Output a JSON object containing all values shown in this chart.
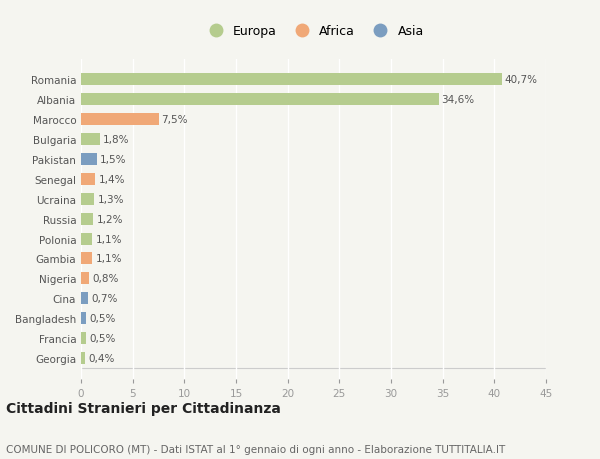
{
  "countries": [
    "Romania",
    "Albania",
    "Marocco",
    "Bulgaria",
    "Pakistan",
    "Senegal",
    "Ucraina",
    "Russia",
    "Polonia",
    "Gambia",
    "Nigeria",
    "Cina",
    "Bangladesh",
    "Francia",
    "Georgia"
  ],
  "values": [
    40.7,
    34.6,
    7.5,
    1.8,
    1.5,
    1.4,
    1.3,
    1.2,
    1.1,
    1.1,
    0.8,
    0.7,
    0.5,
    0.5,
    0.4
  ],
  "labels": [
    "40,7%",
    "34,6%",
    "7,5%",
    "1,8%",
    "1,5%",
    "1,4%",
    "1,3%",
    "1,2%",
    "1,1%",
    "1,1%",
    "0,8%",
    "0,7%",
    "0,5%",
    "0,5%",
    "0,4%"
  ],
  "continents": [
    "Europa",
    "Europa",
    "Africa",
    "Europa",
    "Asia",
    "Africa",
    "Europa",
    "Europa",
    "Europa",
    "Africa",
    "Africa",
    "Asia",
    "Asia",
    "Europa",
    "Europa"
  ],
  "colors": {
    "Europa": "#b5cc8e",
    "Africa": "#f0a877",
    "Asia": "#7b9dc0"
  },
  "xlim": [
    0,
    45
  ],
  "xticks": [
    0,
    5,
    10,
    15,
    20,
    25,
    30,
    35,
    40,
    45
  ],
  "background_color": "#f5f5f0",
  "grid_color": "#ffffff",
  "title": "Cittadini Stranieri per Cittadinanza",
  "subtitle": "COMUNE DI POLICORO (MT) - Dati ISTAT al 1° gennaio di ogni anno - Elaborazione TUTTITALIA.IT",
  "title_fontsize": 10,
  "subtitle_fontsize": 7.5,
  "bar_height": 0.6,
  "label_fontsize": 7.5,
  "ytick_fontsize": 7.5,
  "xtick_fontsize": 7.5,
  "legend_fontsize": 9
}
